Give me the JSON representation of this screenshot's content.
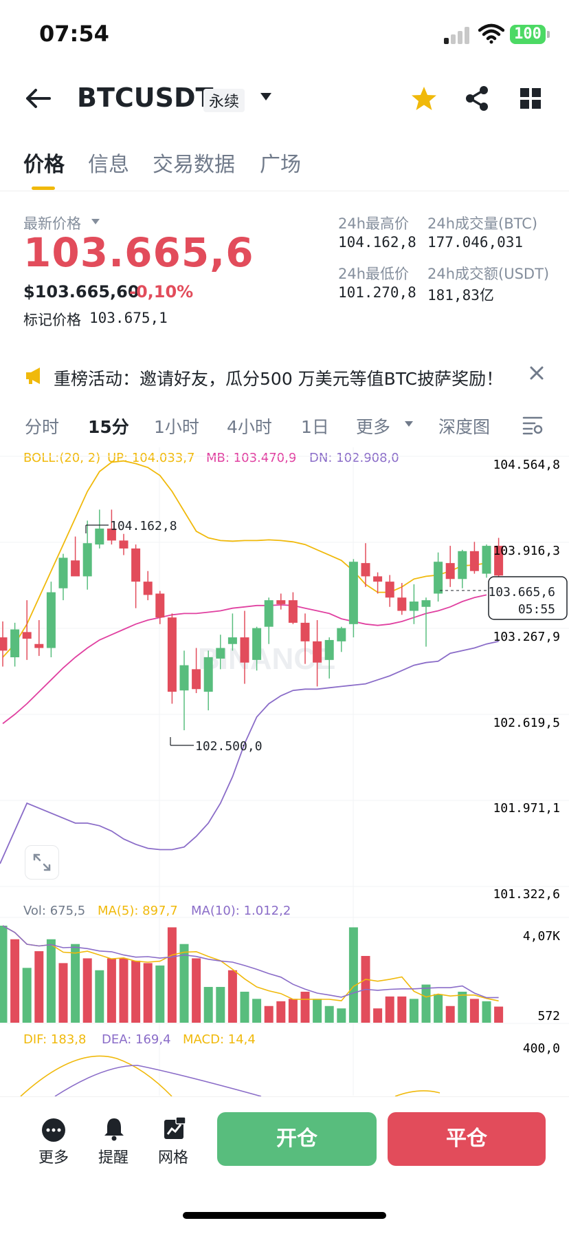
{
  "status_bar": {
    "time": "07:54",
    "battery": "100"
  },
  "header": {
    "symbol": "BTCUSDT",
    "contract_type": "永续"
  },
  "tabs": [
    {
      "label": "价格",
      "active": true
    },
    {
      "label": "信息",
      "active": false
    },
    {
      "label": "交易数据",
      "active": false
    },
    {
      "label": "广场",
      "active": false
    }
  ],
  "ticker": {
    "last_price_label": "最新价格",
    "last_price": "103.665,6",
    "usd_price": "$103.665,60",
    "change_pct": "-0,10%",
    "mark_label": "标记价格",
    "mark_price": "103.675,1",
    "high_label": "24h最高价",
    "high": "104.162,8",
    "low_label": "24h最低价",
    "low": "101.270,8",
    "vol_btc_label": "24h成交量(BTC)",
    "vol_btc": "177.046,031",
    "vol_usdt_label": "24h成交额(USDT)",
    "vol_usdt": "181,83亿"
  },
  "promo": {
    "text": "重榜活动：邀请好友，瓜分500 万美元等值BTC披萨奖励！"
  },
  "intervals": {
    "items": [
      "分时",
      "15分",
      "1小时",
      "4小时",
      "1日",
      "更多"
    ],
    "active": "15分",
    "depth": "深度图"
  },
  "indicators": {
    "boll_label": "BOLL:(20, 2)",
    "up": "UP: 104.033,7",
    "mb": "MB: 103.470,9",
    "dn": "DN: 102.908,0",
    "vol": "Vol: 675,5",
    "ma5": "MA(5): 897,7",
    "ma10": "MA(10): 1.012,2",
    "dif": "DIF: 183,8",
    "dea": "DEA: 169,4",
    "macd": "MACD: 14,4"
  },
  "watermark": "BINANCE",
  "colors": {
    "up": "#58bd7d",
    "down": "#e24c5b",
    "accent": "#f0b90b",
    "boll_up": "#f0b90b",
    "boll_mb": "#e040a0",
    "boll_dn": "#8a6cc8"
  },
  "bottom_bar": {
    "more": "更多",
    "alert": "提醒",
    "grid": "网格",
    "open": "开仓",
    "close": "平仓"
  },
  "chart_data": {
    "type": "candlestick",
    "price_axis_labels": [
      "104.564,8",
      "103.916,3",
      "103.267,9",
      "102.619,5",
      "101.971,1",
      "101.322,6"
    ],
    "current_price_tag": "103.665,6",
    "countdown": "05:55",
    "annotation_high": "104.162,8",
    "annotation_low": "102.500,0",
    "volume_axis_labels": [
      "4,07K",
      "572"
    ],
    "macd_axis_label": "400,0",
    "ylim": [
      101322.6,
      104564.8
    ],
    "candles": [
      {
        "o": 103200,
        "h": 103320,
        "l": 102980,
        "c": 103100
      },
      {
        "o": 103050,
        "h": 103310,
        "l": 102980,
        "c": 103260
      },
      {
        "o": 103240,
        "h": 103480,
        "l": 103030,
        "c": 103190
      },
      {
        "o": 103150,
        "h": 103330,
        "l": 103060,
        "c": 103120
      },
      {
        "o": 103120,
        "h": 103620,
        "l": 103050,
        "c": 103540
      },
      {
        "o": 103570,
        "h": 103830,
        "l": 103480,
        "c": 103800
      },
      {
        "o": 103780,
        "h": 103960,
        "l": 103670,
        "c": 103660
      },
      {
        "o": 103660,
        "h": 104080,
        "l": 103560,
        "c": 103910
      },
      {
        "o": 103900,
        "h": 104163,
        "l": 103870,
        "c": 104020
      },
      {
        "o": 104020,
        "h": 104163,
        "l": 103900,
        "c": 103930
      },
      {
        "o": 103930,
        "h": 103980,
        "l": 103820,
        "c": 103870
      },
      {
        "o": 103870,
        "h": 103900,
        "l": 103420,
        "c": 103620
      },
      {
        "o": 103620,
        "h": 103700,
        "l": 103480,
        "c": 103520
      },
      {
        "o": 103530,
        "h": 103550,
        "l": 103300,
        "c": 103350
      },
      {
        "o": 103350,
        "h": 103380,
        "l": 102700,
        "c": 102790
      },
      {
        "o": 102800,
        "h": 103100,
        "l": 102500,
        "c": 102990
      },
      {
        "o": 102960,
        "h": 103120,
        "l": 102780,
        "c": 102810
      },
      {
        "o": 102790,
        "h": 103100,
        "l": 102650,
        "c": 103050
      },
      {
        "o": 103040,
        "h": 103220,
        "l": 102960,
        "c": 103120
      },
      {
        "o": 103150,
        "h": 103380,
        "l": 103100,
        "c": 103200
      },
      {
        "o": 103200,
        "h": 103400,
        "l": 102850,
        "c": 103010
      },
      {
        "o": 103030,
        "h": 103280,
        "l": 102950,
        "c": 103270
      },
      {
        "o": 103280,
        "h": 103500,
        "l": 103150,
        "c": 103480
      },
      {
        "o": 103480,
        "h": 103530,
        "l": 103410,
        "c": 103450
      },
      {
        "o": 103480,
        "h": 103540,
        "l": 103300,
        "c": 103310
      },
      {
        "o": 103310,
        "h": 103380,
        "l": 103000,
        "c": 103170
      },
      {
        "o": 103170,
        "h": 103330,
        "l": 102830,
        "c": 103010
      },
      {
        "o": 103030,
        "h": 103200,
        "l": 102890,
        "c": 103180
      },
      {
        "o": 103170,
        "h": 103280,
        "l": 103090,
        "c": 103270
      },
      {
        "o": 103300,
        "h": 103790,
        "l": 103200,
        "c": 103770
      },
      {
        "o": 103760,
        "h": 103910,
        "l": 103580,
        "c": 103660
      },
      {
        "o": 103660,
        "h": 103690,
        "l": 103530,
        "c": 103620
      },
      {
        "o": 103620,
        "h": 103670,
        "l": 103430,
        "c": 103500
      },
      {
        "o": 103500,
        "h": 103610,
        "l": 103370,
        "c": 103400
      },
      {
        "o": 103400,
        "h": 103600,
        "l": 103300,
        "c": 103470
      },
      {
        "o": 103430,
        "h": 103500,
        "l": 103130,
        "c": 103480
      },
      {
        "o": 103530,
        "h": 103840,
        "l": 103470,
        "c": 103770
      },
      {
        "o": 103760,
        "h": 103890,
        "l": 103580,
        "c": 103640
      },
      {
        "o": 103640,
        "h": 103860,
        "l": 103570,
        "c": 103850
      },
      {
        "o": 103850,
        "h": 103920,
        "l": 103680,
        "c": 103700
      },
      {
        "o": 103680,
        "h": 103900,
        "l": 103650,
        "c": 103890
      },
      {
        "o": 103890,
        "h": 103950,
        "l": 103600,
        "c": 103666
      }
    ],
    "boll_up": [
      103050,
      103150,
      103300,
      103500,
      103700,
      103900,
      104100,
      104300,
      104450,
      104520,
      104530,
      104510,
      104480,
      104420,
      104300,
      104150,
      104000,
      103950,
      103930,
      103925,
      103930,
      103930,
      103935,
      103930,
      103920,
      103900,
      103860,
      103820,
      103780,
      103700,
      103600,
      103540,
      103540,
      103580,
      103640,
      103660,
      103670,
      103700,
      103740,
      103745,
      103760
    ],
    "boll_mb": [
      102550,
      102620,
      102700,
      102790,
      102880,
      102970,
      103050,
      103120,
      103180,
      103220,
      103260,
      103300,
      103330,
      103350,
      103370,
      103380,
      103380,
      103390,
      103400,
      103420,
      103430,
      103440,
      103440,
      103445,
      103440,
      103420,
      103400,
      103380,
      103340,
      103320,
      103300,
      103290,
      103300,
      103320,
      103350,
      103380,
      103400,
      103430,
      103470,
      103500,
      103520
    ],
    "boll_dn": [
      101800,
      101800,
      101780,
      101740,
      101680,
      101640,
      101610,
      101600,
      101600,
      101620,
      101700,
      101800,
      101950,
      102150,
      102400,
      102600,
      102700,
      102760,
      102800,
      102810,
      102810,
      102820,
      102830,
      102840,
      102850,
      102880,
      102910,
      102950,
      102990,
      103010,
      103020,
      103080,
      103100,
      103120,
      103150,
      103170
    ],
    "volume": [
      {
        "v": 4070,
        "up": true
      },
      {
        "v": 3500,
        "up": false
      },
      {
        "v": 2300,
        "up": true
      },
      {
        "v": 3000,
        "up": false
      },
      {
        "v": 3500,
        "up": true
      },
      {
        "v": 2500,
        "up": false
      },
      {
        "v": 3300,
        "up": true
      },
      {
        "v": 2700,
        "up": false
      },
      {
        "v": 2200,
        "up": true
      },
      {
        "v": 2700,
        "up": false
      },
      {
        "v": 2700,
        "up": false
      },
      {
        "v": 2600,
        "up": false
      },
      {
        "v": 2500,
        "up": false
      },
      {
        "v": 2400,
        "up": true
      },
      {
        "v": 4000,
        "up": false
      },
      {
        "v": 3300,
        "up": true
      },
      {
        "v": 2700,
        "up": false
      },
      {
        "v": 1500,
        "up": true
      },
      {
        "v": 1500,
        "up": true
      },
      {
        "v": 2200,
        "up": false
      },
      {
        "v": 1300,
        "up": true
      },
      {
        "v": 1000,
        "up": true
      },
      {
        "v": 700,
        "up": false
      },
      {
        "v": 900,
        "up": false
      },
      {
        "v": 1000,
        "up": false
      },
      {
        "v": 1300,
        "up": false
      },
      {
        "v": 1000,
        "up": true
      },
      {
        "v": 700,
        "up": true
      },
      {
        "v": 600,
        "up": true
      },
      {
        "v": 4000,
        "up": true
      },
      {
        "v": 2800,
        "up": false
      },
      {
        "v": 600,
        "up": false
      },
      {
        "v": 1100,
        "up": false
      },
      {
        "v": 1100,
        "up": false
      },
      {
        "v": 1000,
        "up": true
      },
      {
        "v": 1600,
        "up": true
      },
      {
        "v": 1200,
        "up": true
      },
      {
        "v": 700,
        "up": false
      },
      {
        "v": 1300,
        "up": true
      },
      {
        "v": 1000,
        "up": false
      },
      {
        "v": 900,
        "up": true
      },
      {
        "v": 676,
        "up": false
      }
    ]
  }
}
